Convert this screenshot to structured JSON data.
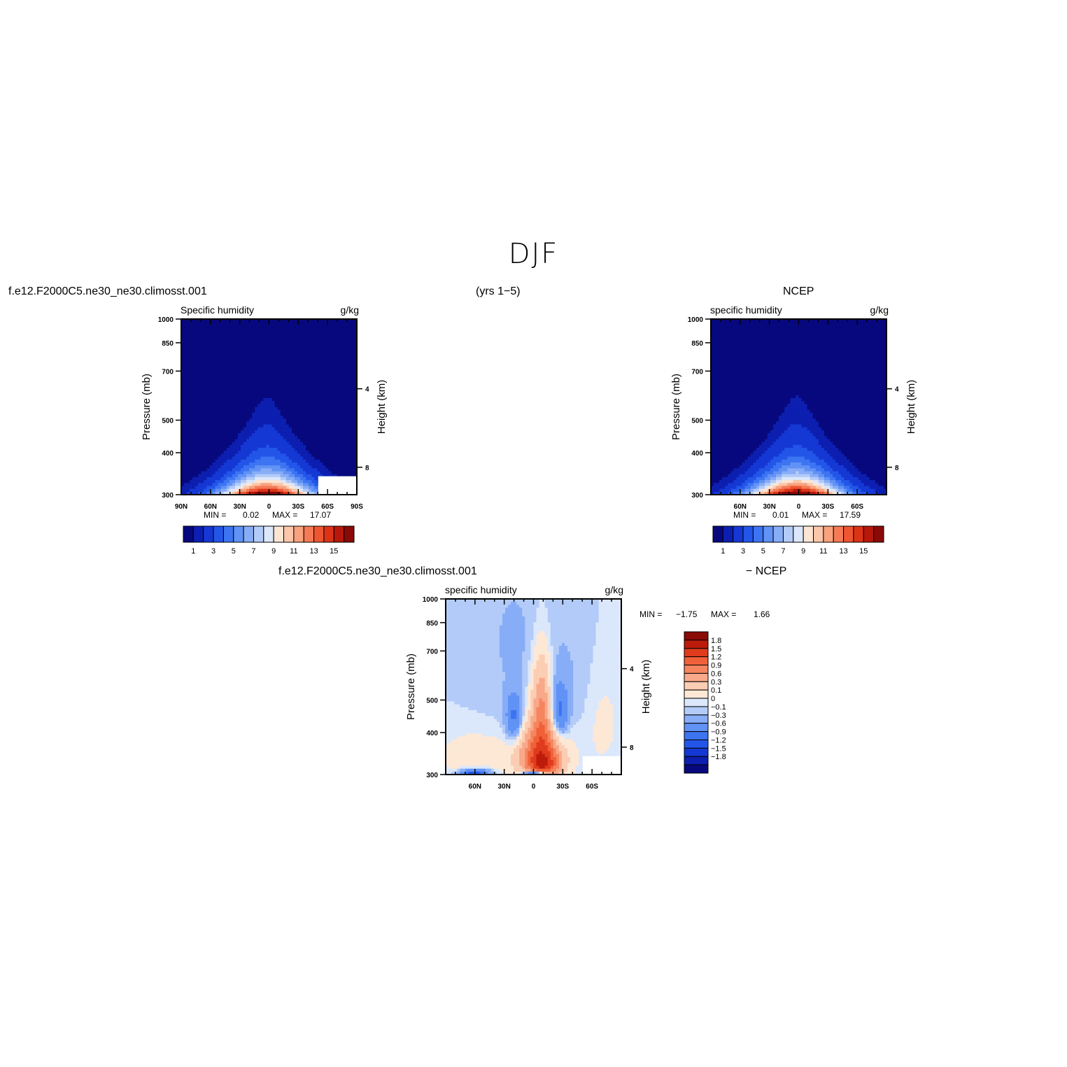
{
  "page": {
    "main_title": "DJF",
    "top_left_case": "f.e12.F2000C5.ne30_ne30.climosst.001",
    "top_center_years": "(yrs  1−5)",
    "top_right_case": "NCEP",
    "bottom_case": "f.e12.F2000C5.ne30_ne30.climosst.001",
    "bottom_diff": "− NCEP"
  },
  "colors": {
    "seq_palette": [
      "#08087e",
      "#0c1fb0",
      "#1538d4",
      "#2356e8",
      "#3d74f2",
      "#6192f5",
      "#88adf7",
      "#b3cbf8",
      "#dbe7fb",
      "#fde5d4",
      "#fbc6a9",
      "#f8a27e",
      "#f47b55",
      "#ee5632",
      "#dc3317",
      "#b8180b",
      "#8a0a06"
    ],
    "diff_palette": [
      "#08087e",
      "#0c1fb0",
      "#1538d4",
      "#2356e8",
      "#3d74f2",
      "#6192f5",
      "#88adf7",
      "#b3cbf8",
      "#dbe7fb",
      "#fde8d6",
      "#fbcdb2",
      "#f8a98a",
      "#f5855f",
      "#f06139",
      "#e03b1c",
      "#bd1c0d",
      "#8a0a06"
    ],
    "axis": "#000000"
  },
  "chart_data": [
    {
      "type": "heatmap",
      "id": "model",
      "title": "Specific  humidity",
      "units": "g/kg",
      "ylabel": "Pressure  (mb)",
      "ylabel_right": "Height  (km)",
      "x": [
        "90N",
        "60N",
        "30N",
        "0",
        "30S",
        "60S",
        "90S"
      ],
      "xlim": [
        90,
        -90
      ],
      "y_ticks": [
        300,
        400,
        500,
        700,
        850,
        1000
      ],
      "ylim": [
        1000,
        300
      ],
      "y_scale": "log",
      "height_ticks": [
        "4",
        "8"
      ],
      "min_max_text": {
        "min_label": "MIN  =",
        "min": "0.02",
        "max_label": "MAX  =",
        "max": "17.07"
      },
      "colorbar_labels": [
        "1",
        "3",
        "5",
        "7",
        "9",
        "11",
        "13",
        "15"
      ],
      "peak_value": 17.07,
      "peak_lat": 0,
      "missing_box": "lower-right"
    },
    {
      "type": "heatmap",
      "id": "obs",
      "title": "specific  humidity",
      "units": "g/kg",
      "ylabel": "Pressure  (mb)",
      "ylabel_right": "Height  (km)",
      "x": [
        "60N",
        "30N",
        "0",
        "30S",
        "60S"
      ],
      "xlim": [
        90,
        -90
      ],
      "y_ticks": [
        300,
        400,
        500,
        700,
        850,
        1000
      ],
      "ylim": [
        1000,
        300
      ],
      "y_scale": "log",
      "height_ticks": [
        "4",
        "8"
      ],
      "min_max_text": {
        "min_label": "MIN  =",
        "min": "0.01",
        "max_label": "MAX  =",
        "max": "17.59"
      },
      "colorbar_labels": [
        "1",
        "3",
        "5",
        "7",
        "9",
        "11",
        "13",
        "15"
      ],
      "peak_value": 17.59,
      "peak_lat": 0
    },
    {
      "type": "heatmap",
      "id": "diff",
      "title": "specific  humidity",
      "units": "g/kg",
      "ylabel": "Pressure  (mb)",
      "ylabel_right": "Height  (km)",
      "x": [
        "60N",
        "30N",
        "0",
        "30S",
        "60S"
      ],
      "xlim": [
        90,
        -90
      ],
      "y_ticks": [
        300,
        400,
        500,
        700,
        850,
        1000
      ],
      "ylim": [
        1000,
        300
      ],
      "y_scale": "log",
      "height_ticks": [
        "4",
        "8"
      ],
      "min_max_text": {
        "min_label": "MIN  =",
        "min": "−1.75",
        "max_label": "MAX  =",
        "max": "1.66"
      },
      "colorbar_labels": [
        "1.8",
        "1.5",
        "1.2",
        "0.9",
        "0.6",
        "0.3",
        "0.1",
        "0",
        "−0.1",
        "−0.3",
        "−0.6",
        "−0.9",
        "−1.2",
        "−1.5",
        "−1.8"
      ],
      "min": -1.75,
      "max": 1.66
    }
  ]
}
